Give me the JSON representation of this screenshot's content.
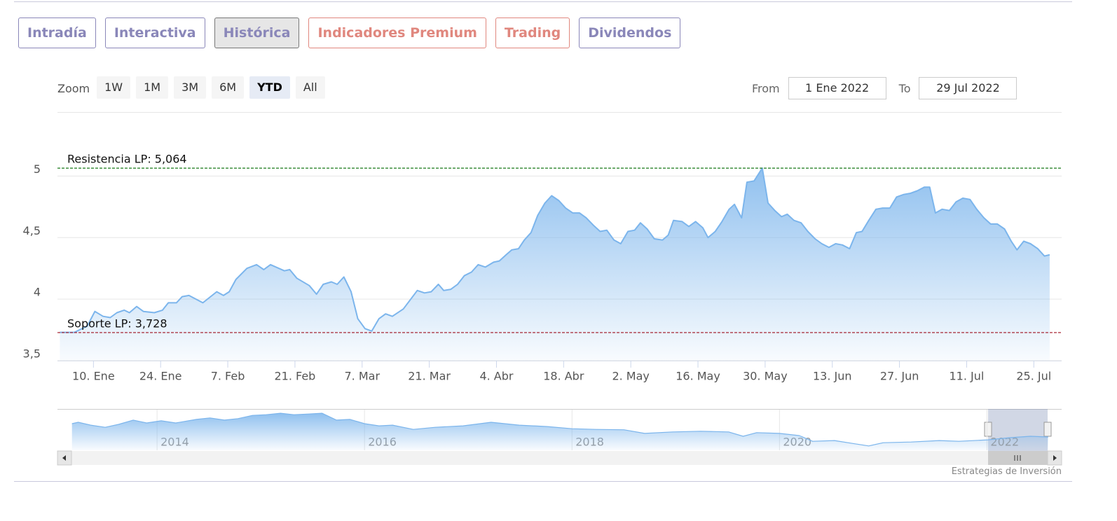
{
  "tabs": [
    {
      "label": "Intradía",
      "color": "#8a87b9"
    },
    {
      "label": "Interactiva",
      "color": "#8a87b9"
    },
    {
      "label": "Histórica",
      "color": "#8a87b9"
    },
    {
      "label": "Indicadores Premium",
      "color": "#e0877e"
    },
    {
      "label": "Trading",
      "color": "#e0877e"
    },
    {
      "label": "Dividendos",
      "color": "#8a87b9"
    }
  ],
  "active_tab": 2,
  "zoom": {
    "label": "Zoom",
    "buttons": [
      "1W",
      "1M",
      "3M",
      "6M",
      "YTD",
      "All"
    ],
    "selected": 4
  },
  "range": {
    "from_label": "From",
    "from": "1 Ene 2022",
    "to_label": "To",
    "to": "29 Jul 2022"
  },
  "credits": "Estrategias de Inversión",
  "chart_data": [
    {
      "type": "area",
      "color": "#7cb5ec",
      "x": [
        3,
        6,
        8.7,
        10.3,
        12,
        13.5,
        14.9,
        16.4,
        17.5,
        19,
        20.4,
        22.7,
        24.4,
        25.6,
        27.3,
        28.5,
        29.9,
        32.8,
        35.7,
        37.1,
        38.3,
        39.7,
        42,
        44,
        45.5,
        46.9,
        49.8,
        50.9,
        52.4,
        55,
        56.5,
        57.9,
        59.6,
        60.8,
        62.2,
        63.7,
        65.1,
        66.6,
        68,
        69.5,
        70.9,
        72.3,
        74.6,
        77.5,
        79,
        80.4,
        81.9,
        83,
        84.5,
        85.9,
        87.3,
        88.8,
        90.2,
        91.7,
        93.4,
        94.6,
        96,
        97.2,
        98.6,
        99.8,
        101.2,
        102.6,
        104.1,
        105.5,
        107,
        108.4,
        109.9,
        111.3,
        112.7,
        114.2,
        115.6,
        117,
        118.5,
        119.9,
        121.4,
        122.8,
        124,
        125.4,
        126.9,
        128.6,
        129.8,
        130.9,
        132.7,
        134.1,
        135.5,
        137,
        138.1,
        139.6,
        141,
        142.5,
        143.6,
        145.1,
        146.2,
        147.7,
        149.4,
        150.6,
        152,
        153.4,
        154.6,
        156,
        157.5,
        158.9,
        160.4,
        161.8,
        163.3,
        164.7,
        166.1,
        167.6,
        169,
        170.2,
        171.6,
        173.1,
        174.5,
        176,
        177.4,
        178.9,
        180.3,
        181.7,
        183.2,
        184.3,
        185.5,
        186.9,
        188.4,
        189.8,
        191.2,
        192.7,
        194.1,
        195.6,
        197,
        198.4,
        199.9,
        201.3,
        202.5,
        203.9,
        205.3,
        206.8,
        208.2,
        209.3
      ],
      "values": [
        3.73,
        3.73,
        3.78,
        3.9,
        3.86,
        3.85,
        3.89,
        3.91,
        3.89,
        3.94,
        3.9,
        3.89,
        3.91,
        3.97,
        3.97,
        4.02,
        4.03,
        3.97,
        4.06,
        4.03,
        4.06,
        4.16,
        4.25,
        4.28,
        4.24,
        4.28,
        4.23,
        4.24,
        4.17,
        4.11,
        4.04,
        4.12,
        4.14,
        4.12,
        4.18,
        4.06,
        3.84,
        3.76,
        3.74,
        3.84,
        3.88,
        3.86,
        3.92,
        4.07,
        4.05,
        4.06,
        4.12,
        4.07,
        4.08,
        4.12,
        4.19,
        4.22,
        4.28,
        4.26,
        4.3,
        4.31,
        4.36,
        4.4,
        4.41,
        4.48,
        4.54,
        4.68,
        4.78,
        4.84,
        4.8,
        4.74,
        4.7,
        4.7,
        4.66,
        4.6,
        4.55,
        4.56,
        4.48,
        4.45,
        4.55,
        4.56,
        4.62,
        4.57,
        4.49,
        4.48,
        4.52,
        4.64,
        4.63,
        4.59,
        4.63,
        4.58,
        4.5,
        4.55,
        4.63,
        4.73,
        4.77,
        4.66,
        4.95,
        4.96,
        5.064,
        4.78,
        4.72,
        4.67,
        4.69,
        4.64,
        4.62,
        4.55,
        4.49,
        4.45,
        4.42,
        4.45,
        4.44,
        4.41,
        4.54,
        4.55,
        4.64,
        4.73,
        4.74,
        4.74,
        4.83,
        4.85,
        4.86,
        4.88,
        4.91,
        4.91,
        4.7,
        4.73,
        4.72,
        4.79,
        4.82,
        4.81,
        4.73,
        4.66,
        4.61,
        4.61,
        4.57,
        4.47,
        4.4,
        4.47,
        4.45,
        4.41,
        4.35,
        4.36
      ],
      "xlim": [
        2.5,
        211.8
      ],
      "xticks": [
        {
          "value": 10,
          "label": "10. Ene"
        },
        {
          "value": 24,
          "label": "24. Ene"
        },
        {
          "value": 38,
          "label": "7. Feb"
        },
        {
          "value": 52,
          "label": "21. Feb"
        },
        {
          "value": 66,
          "label": "7. Mar"
        },
        {
          "value": 80,
          "label": "21. Mar"
        },
        {
          "value": 94,
          "label": "4. Abr"
        },
        {
          "value": 108,
          "label": "18. Abr"
        },
        {
          "value": 122,
          "label": "2. May"
        },
        {
          "value": 136,
          "label": "16. May"
        },
        {
          "value": 150,
          "label": "30. May"
        },
        {
          "value": 164,
          "label": "13. Jun"
        },
        {
          "value": 178,
          "label": "27. Jun"
        },
        {
          "value": 192,
          "label": "11. Jul"
        },
        {
          "value": 206,
          "label": "25. Jul"
        }
      ],
      "ylim": [
        3.5,
        5.52
      ],
      "yticks": [
        {
          "value": 3.5,
          "label": "3,5"
        },
        {
          "value": 4,
          "label": "4"
        },
        {
          "value": 4.5,
          "label": "4,5"
        },
        {
          "value": 5,
          "label": "5"
        }
      ],
      "grid": true,
      "plot_lines": [
        {
          "value": 5.064,
          "label": "Resistencia LP: 5,064",
          "color": "#1a7a1a"
        },
        {
          "value": 3.728,
          "label": "Soporte LP: 3,728",
          "color": "#a01020"
        }
      ]
    },
    {
      "type": "area",
      "color": "#7cb5ec",
      "x": [
        2013.18,
        2013.24,
        2013.36,
        2013.5,
        2013.63,
        2013.77,
        2013.9,
        2014.04,
        2014.18,
        2014.38,
        2014.51,
        2014.65,
        2014.78,
        2014.92,
        2015.05,
        2015.19,
        2015.32,
        2015.46,
        2015.59,
        2015.73,
        2015.86,
        2016.0,
        2016.14,
        2016.27,
        2016.47,
        2016.68,
        2016.95,
        2017.22,
        2017.49,
        2017.76,
        2018.0,
        2018.23,
        2018.5,
        2018.7,
        2018.97,
        2019.24,
        2019.51,
        2019.65,
        2019.78,
        2020.0,
        2020.19,
        2020.32,
        2020.53,
        2020.73,
        2020.86,
        2021.0,
        2021.27,
        2021.54,
        2021.73,
        2022.01,
        2022.22,
        2022.42,
        2022.59
      ],
      "values": [
        9.1,
        9.5,
        8.7,
        8.1,
        8.9,
        10.1,
        9.3,
        9.9,
        9.3,
        10.3,
        10.7,
        10.1,
        10.5,
        11.4,
        11.6,
        12.0,
        11.6,
        11.8,
        12.0,
        10.1,
        10.3,
        9.1,
        8.5,
        8.7,
        7.5,
        8.1,
        8.5,
        9.5,
        8.7,
        8.3,
        7.7,
        7.5,
        7.4,
        6.4,
        6.8,
        7.0,
        6.8,
        5.6,
        6.6,
        6.4,
        5.8,
        4.2,
        4.4,
        3.5,
        2.9,
        3.8,
        4.0,
        4.4,
        4.2,
        4.6,
        5.2,
        5.6,
        5.4
      ],
      "xlim": [
        2013.04,
        2022.72
      ],
      "xticks": [
        2014,
        2016,
        2018,
        2020,
        2022
      ],
      "ylim": [
        1.7,
        13
      ],
      "grid": true
    }
  ]
}
